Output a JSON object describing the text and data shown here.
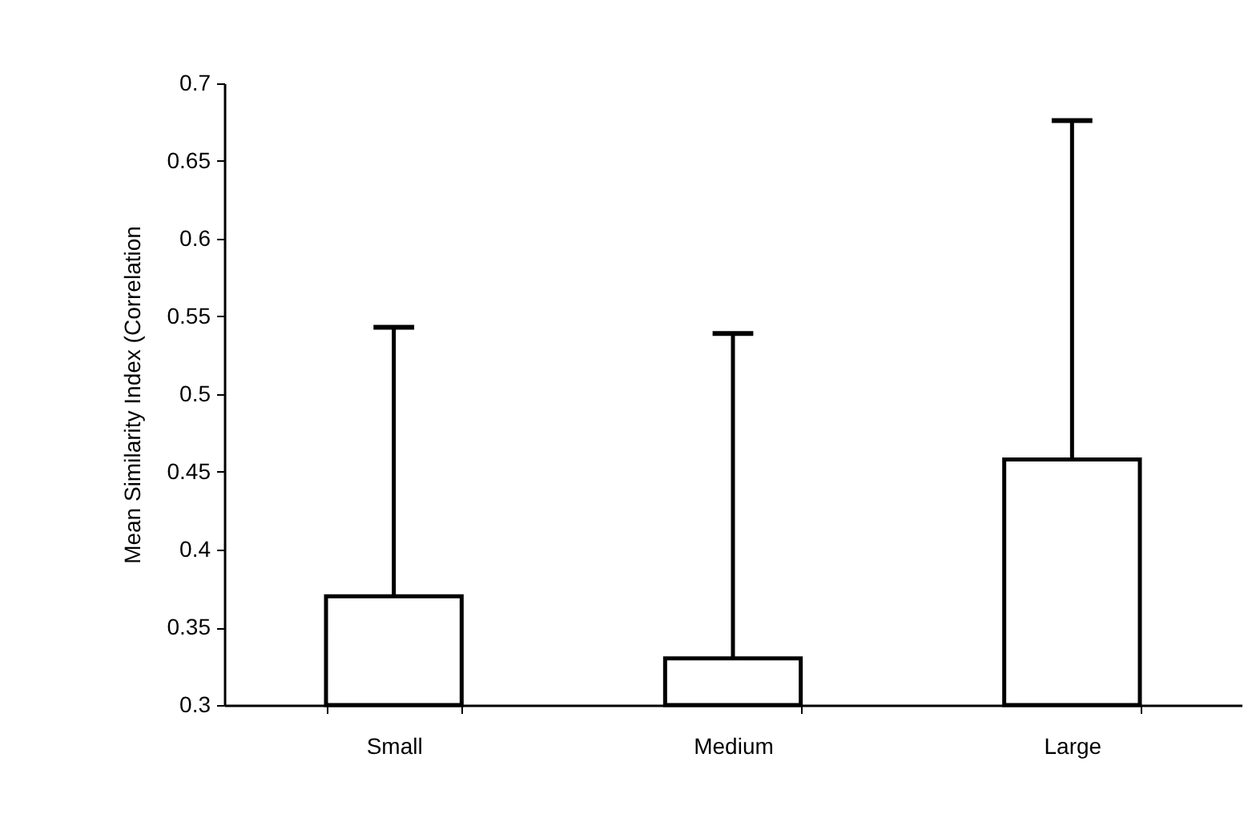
{
  "chart_data": {
    "type": "bar",
    "ylabel": "Mean Similarity Index (Correlation",
    "categories": [
      "Small",
      "Medium",
      "Large"
    ],
    "values": [
      0.37,
      0.33,
      0.458
    ],
    "errors": [
      [
        0.37,
        0.543
      ],
      [
        0.33,
        0.539
      ],
      [
        0.458,
        0.676
      ]
    ],
    "color": "#ffffff",
    "ylim": [
      0.3,
      0.7
    ],
    "yticks": [
      0.3,
      0.35,
      0.4,
      0.45,
      0.5,
      0.55,
      0.6,
      0.65,
      0.7
    ],
    "grid": false
  }
}
